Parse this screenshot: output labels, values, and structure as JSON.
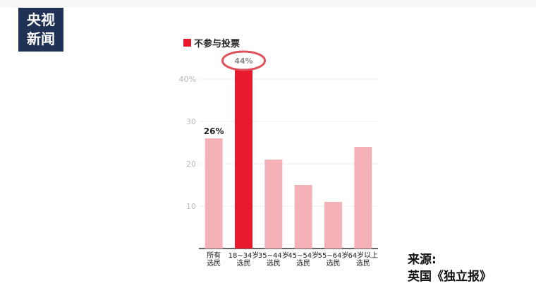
{
  "logo": {
    "line1": "央视",
    "line2a": "新",
    "line2b": "闻"
  },
  "source": {
    "line1": "来源:",
    "line2": "英国《独立报》"
  },
  "chart_data": {
    "type": "bar",
    "title": "",
    "xlabel": "",
    "ylabel": "",
    "legend": {
      "label": "不参与投票",
      "color": "#e8192c",
      "placement": "top-left"
    },
    "categories": [
      [
        "所有",
        "选民"
      ],
      [
        "18~34岁",
        "选民"
      ],
      [
        "35~44岁",
        "选民"
      ],
      [
        "45~54岁",
        "选民"
      ],
      [
        "55~64岁",
        "选民"
      ],
      [
        "64岁以上",
        "选民"
      ]
    ],
    "values": [
      26,
      44,
      21,
      15,
      11,
      24
    ],
    "colors": [
      "#f4b2b8",
      "#e8192c",
      "#f4b2b8",
      "#f4b2b8",
      "#f4b2b8",
      "#f4b2b8"
    ],
    "data_labels": [
      "26%",
      "44%",
      "",
      "",
      "",
      ""
    ],
    "highlight_index": 1,
    "ylim": [
      0,
      45
    ],
    "yticks": [
      10,
      20,
      30,
      40
    ],
    "ytick_labels": [
      "10",
      "20",
      "30",
      "40%"
    ],
    "grid": true
  }
}
